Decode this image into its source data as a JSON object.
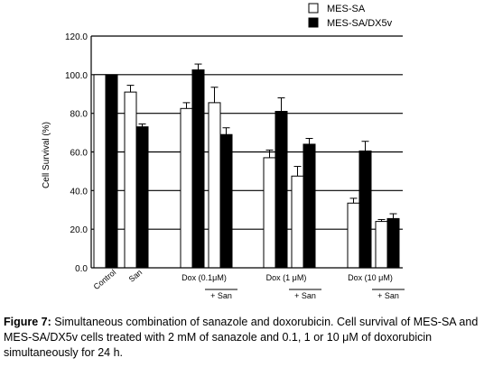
{
  "chart_data": {
    "type": "bar",
    "ylabel": "Cell Survival (%)",
    "ylim": [
      0,
      120
    ],
    "yticks": [
      "0.0",
      "20.0",
      "40.0",
      "60.0",
      "80.0",
      "100.0",
      "120.0"
    ],
    "gridlines": "horizontal",
    "legend_position": "top-right",
    "categories": [
      {
        "label": "Control",
        "rotated": true
      },
      {
        "label": "San",
        "rotated": true
      },
      {
        "label": "Dox (0.1μM)",
        "rotated": false
      },
      {
        "label": "+ San",
        "rotated": false,
        "sub": true
      },
      {
        "label": "Dox (1 μM)",
        "rotated": false
      },
      {
        "label": "+ San",
        "rotated": false,
        "sub": true
      },
      {
        "label": "Dox (10 μM)",
        "rotated": false
      },
      {
        "label": "+ San",
        "rotated": false,
        "sub": true
      }
    ],
    "series": [
      {
        "name": "MES-SA",
        "color": "#ffffff",
        "values": [
          100,
          91,
          82.5,
          85.5,
          57,
          47.5,
          33.5,
          24
        ],
        "errors": [
          0,
          3.5,
          3,
          8,
          4,
          5,
          2.5,
          1
        ]
      },
      {
        "name": "MES-SA/DX5v",
        "color": "#000000",
        "values": [
          100,
          73,
          102.5,
          69,
          81,
          64,
          60.5,
          25.5
        ],
        "errors": [
          0,
          1.5,
          3,
          3.5,
          7,
          3,
          5,
          2.5
        ]
      }
    ]
  },
  "caption": {
    "label": "Figure 7:",
    "text": "Simultaneous combination of sanazole and doxorubicin. Cell survival of MES-SA and MES-SA/DX5v cells treated with 2 mM of sanazole and 0.1, 1 or 10 μM of doxorubicin simultaneously for 24 h."
  }
}
